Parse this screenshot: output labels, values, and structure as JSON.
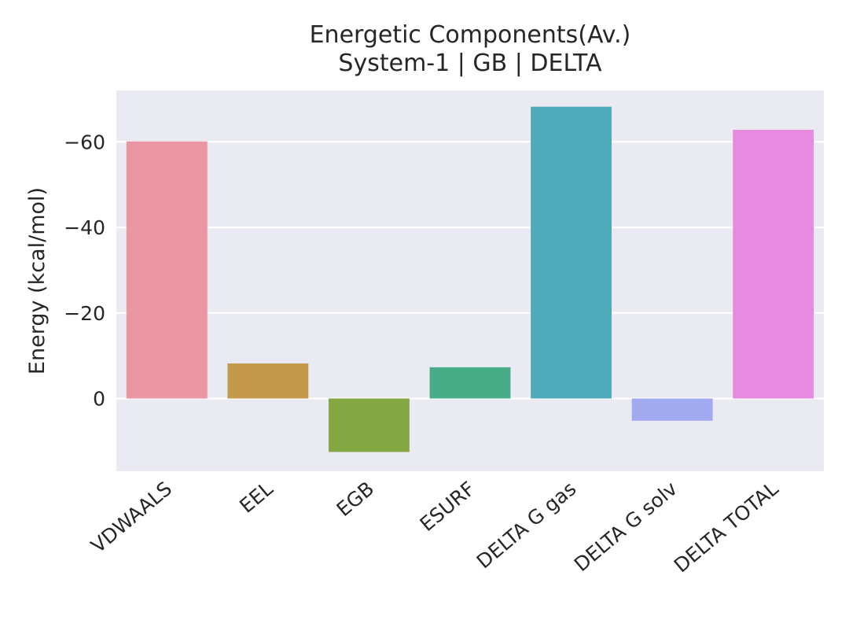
{
  "chart_data": {
    "type": "bar",
    "title": "Energetic Components(Av.)",
    "subtitle": "System-1 | GB | DELTA",
    "ylabel": "Energy (kcal/mol)",
    "xlabel": "",
    "categories": [
      "VDWAALS",
      "EEL",
      "EGB",
      "ESURF",
      "DELTA G gas",
      "DELTA G solv",
      "DELTA TOTAL"
    ],
    "values": [
      -60.1,
      -8.2,
      12.5,
      -7.3,
      -68.2,
      5.2,
      -62.8
    ],
    "colors": [
      "#ea96a3",
      "#c39a4c",
      "#84a744",
      "#47ad89",
      "#4eabba",
      "#a1aaee",
      "#e78be1"
    ],
    "yticks": [
      -60,
      -40,
      -20,
      0
    ],
    "ytick_labels": [
      "−60",
      "−40",
      "−20",
      "0"
    ],
    "ylim": [
      17,
      -72
    ],
    "y_inverted": true,
    "grid": true,
    "background": "#eaeaf2"
  }
}
